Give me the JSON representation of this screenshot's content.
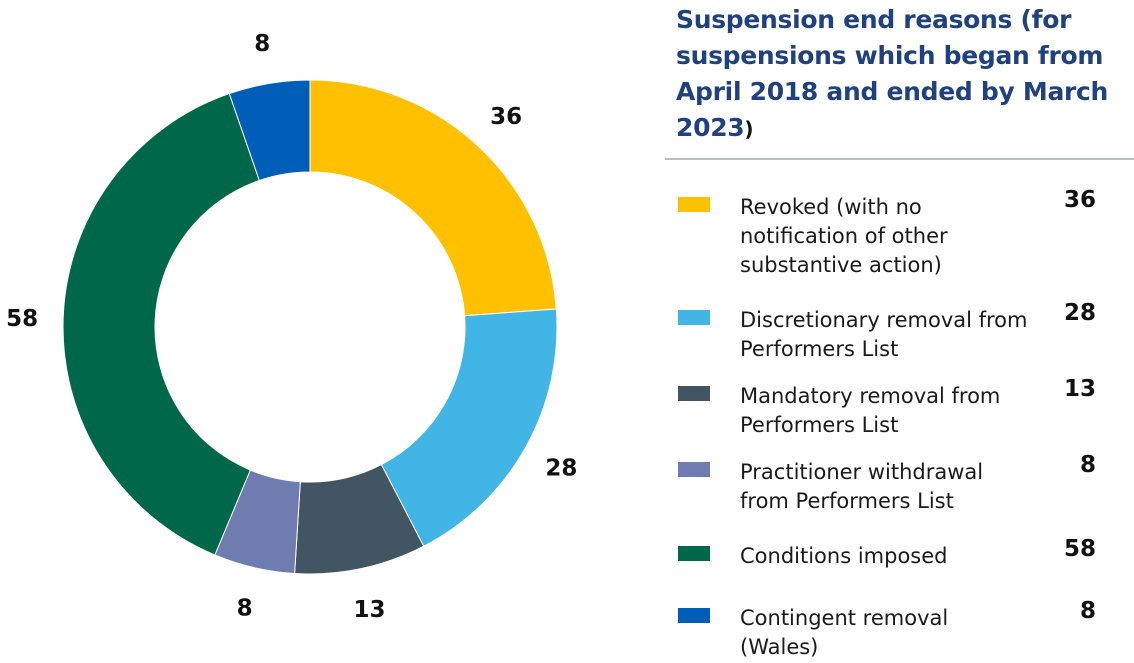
{
  "chart_data": {
    "type": "pie",
    "variant": "donut",
    "title": "Suspension end reasons (for suspensions which began from April 2018 and ended by March 2023",
    "title_close": ")",
    "categories": [
      "Revoked (with no notification of other substantive action)",
      "Discretionary removal from Performers List",
      "Mandatory removal from Performers List",
      "Practitioner withdrawal from Performers List",
      "Conditions imposed",
      "Contingent removal (Wales)"
    ],
    "values": [
      36,
      28,
      13,
      8,
      58,
      8
    ],
    "colors": [
      "#FFC000",
      "#41B6E6",
      "#425563",
      "#6E7CB0",
      "#00684A",
      "#005EB8"
    ],
    "legend_position": "right",
    "start": "top, clockwise"
  }
}
